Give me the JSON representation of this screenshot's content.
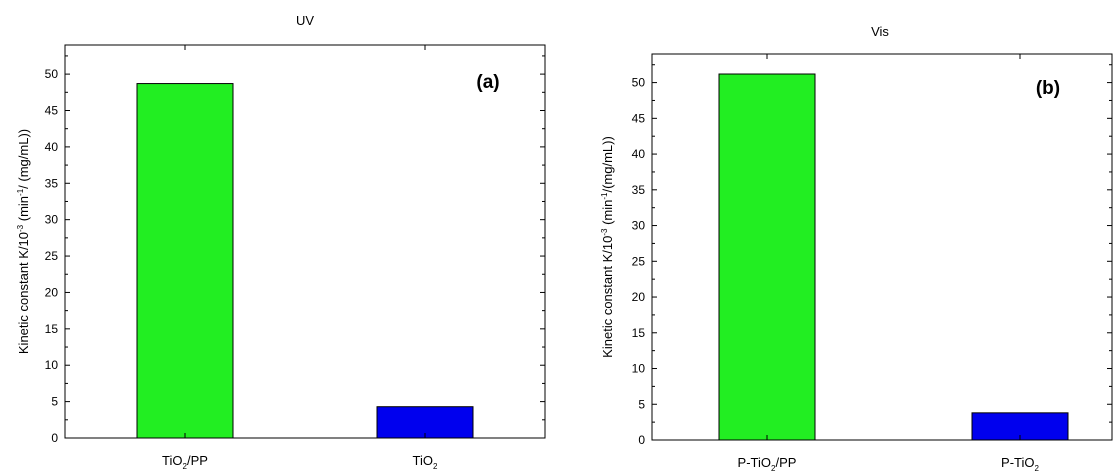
{
  "chart_data": [
    {
      "type": "bar",
      "title": "UV",
      "panel_label": "(a)",
      "ylabel": {
        "pre": "Kinetic constant K/10",
        "sup1": "-3",
        "mid": " (min",
        "sup2": "-1",
        "post": "/ (mg/mL))"
      },
      "categories": [
        {
          "main": "TiO",
          "sub": "2",
          "rest": "/PP"
        },
        {
          "main": "TiO",
          "sub": "2",
          "rest": ""
        }
      ],
      "values": [
        48.7,
        4.3
      ],
      "ylim": [
        0,
        54
      ],
      "yticks": [
        0,
        5,
        10,
        15,
        20,
        25,
        30,
        35,
        40,
        45,
        50
      ],
      "bar_colors": [
        "#22ee22",
        "#0000ee"
      ],
      "grid": false
    },
    {
      "type": "bar",
      "title": "Vis",
      "panel_label": "(b)",
      "ylabel": {
        "pre": "Kinetic constant K/10",
        "sup1": "-3",
        "mid": " (min",
        "sup2": "-1",
        "post": "/(mg/mL))"
      },
      "categories": [
        {
          "main": "P-TiO",
          "sub": "2",
          "rest": "/PP"
        },
        {
          "main": "P-TiO",
          "sub": "2",
          "rest": ""
        }
      ],
      "values": [
        51.2,
        3.8
      ],
      "ylim": [
        0,
        54
      ],
      "yticks": [
        0,
        5,
        10,
        15,
        20,
        25,
        30,
        35,
        40,
        45,
        50
      ],
      "bar_colors": [
        "#22ee22",
        "#0000ee"
      ],
      "grid": false
    }
  ]
}
